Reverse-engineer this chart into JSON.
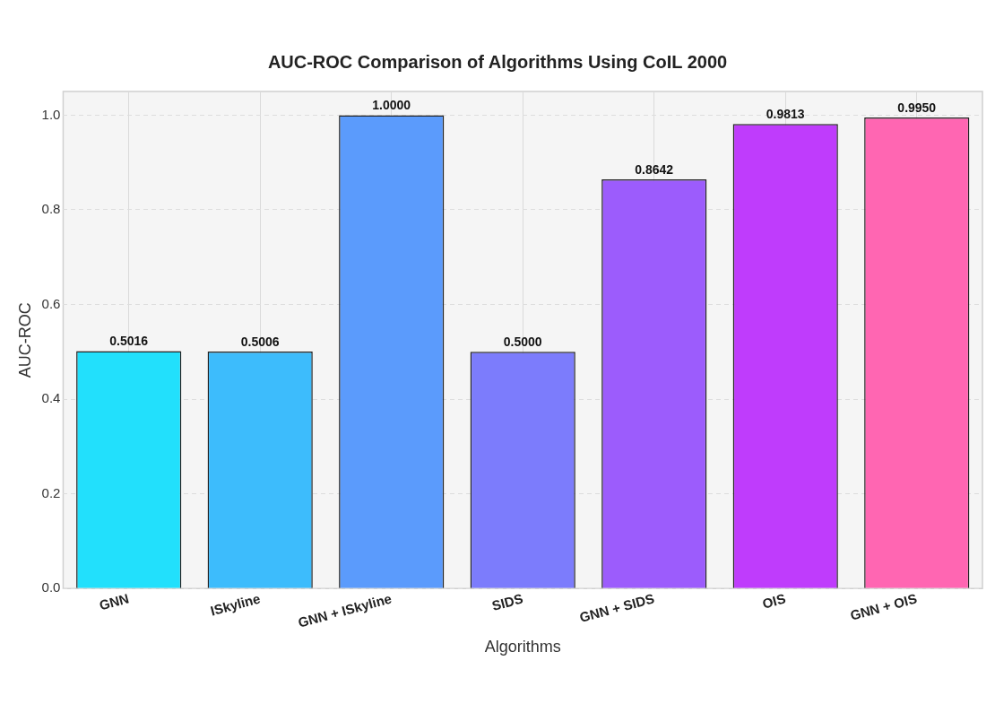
{
  "chart_data": {
    "type": "bar",
    "title": "AUC-ROC Comparison of Algorithms Using CoIL 2000",
    "xlabel": "Algorithms",
    "ylabel": "AUC-ROC",
    "categories": [
      "GNN",
      "ISkyline",
      "GNN + ISkyline",
      "SIDS",
      "GNN + SIDS",
      "OIS",
      "GNN + OIS"
    ],
    "values": [
      0.5016,
      0.5006,
      1.0,
      0.5,
      0.8642,
      0.9813,
      0.995
    ],
    "colors": [
      "#22e0fc",
      "#3dbcfc",
      "#5b9bfc",
      "#7c7cfc",
      "#9c5cfc",
      "#bf3cfc",
      "#ff66b2"
    ],
    "value_labels": [
      "0.5016",
      "0.5006",
      "1.0000",
      "0.5000",
      "0.8642",
      "0.9813",
      "0.9950"
    ],
    "ylim": [
      0,
      1.05
    ],
    "yticks": [
      {
        "value": 0,
        "label": "0.0"
      },
      {
        "value": 0.2,
        "label": "0.2"
      },
      {
        "value": 0.4,
        "label": "0.4"
      },
      {
        "value": 0.6,
        "label": "0.6"
      },
      {
        "value": 0.8,
        "label": "0.8"
      },
      {
        "value": 1,
        "label": "1.0"
      }
    ],
    "grid": true
  }
}
